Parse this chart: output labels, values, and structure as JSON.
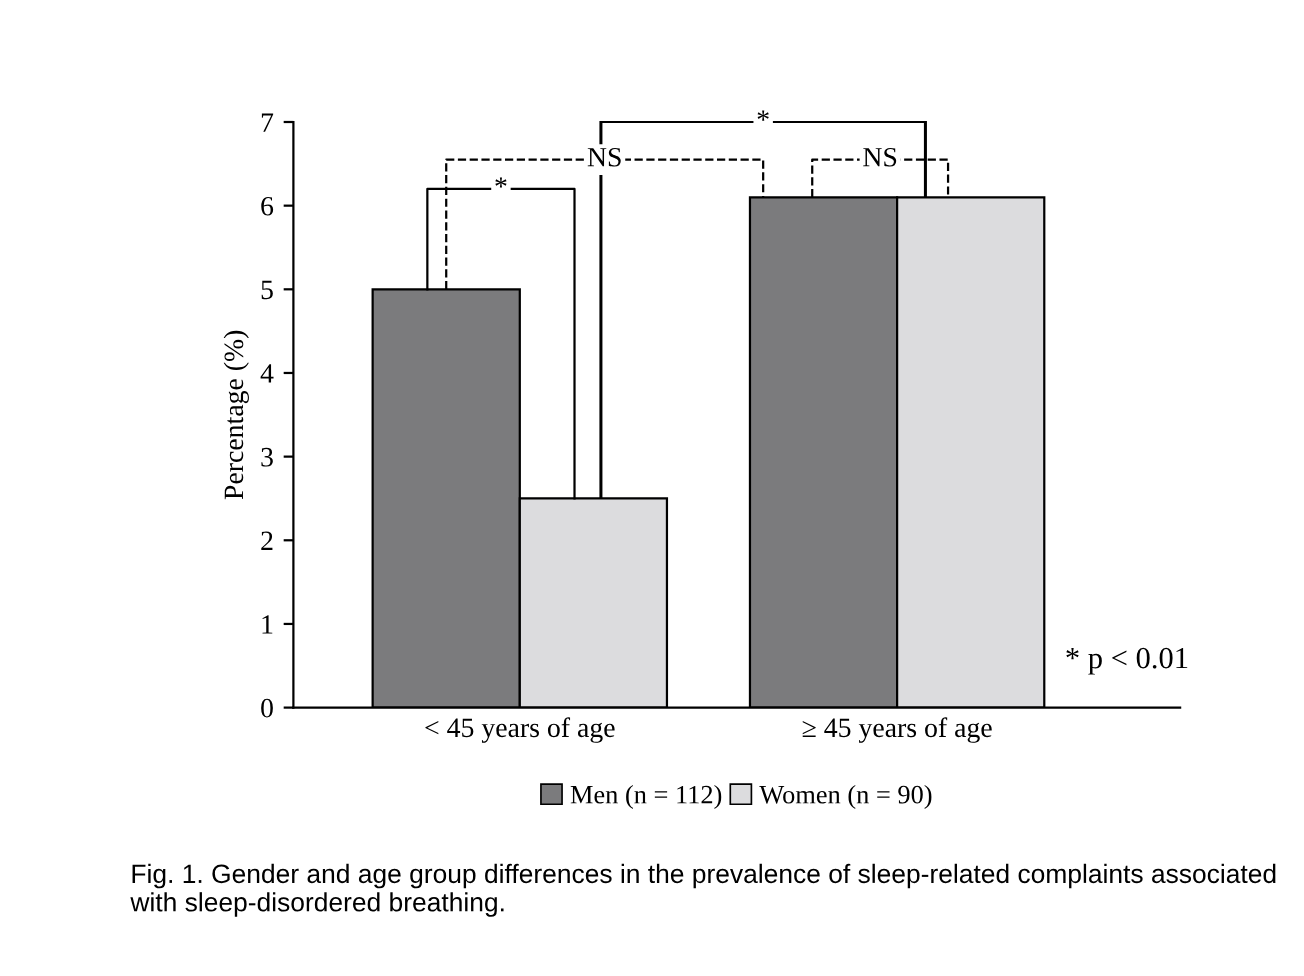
{
  "chart_data": {
    "type": "bar",
    "categories": [
      "< 45 years of age",
      "≥ 45 years of age"
    ],
    "series": [
      {
        "name": "Men (n = 112)",
        "color": "#7b7b7d",
        "values": [
          5.0,
          6.1
        ]
      },
      {
        "name": "Women (n = 90)",
        "color": "#dcdcde",
        "values": [
          2.5,
          6.1
        ]
      }
    ],
    "ylabel": "Percentage (%)",
    "ylim": [
      0,
      7
    ],
    "yticks": [
      0,
      1,
      2,
      3,
      4,
      5,
      6,
      7
    ],
    "grid": false,
    "legend": "bottom",
    "annotations": [
      "*",
      "NS",
      "NS",
      "*",
      "* p < 0.01",
      "Fig. 1. Gender and age group differences in the prevalence of sleep-related complaints associated with sleep-disordered breathing."
    ]
  }
}
